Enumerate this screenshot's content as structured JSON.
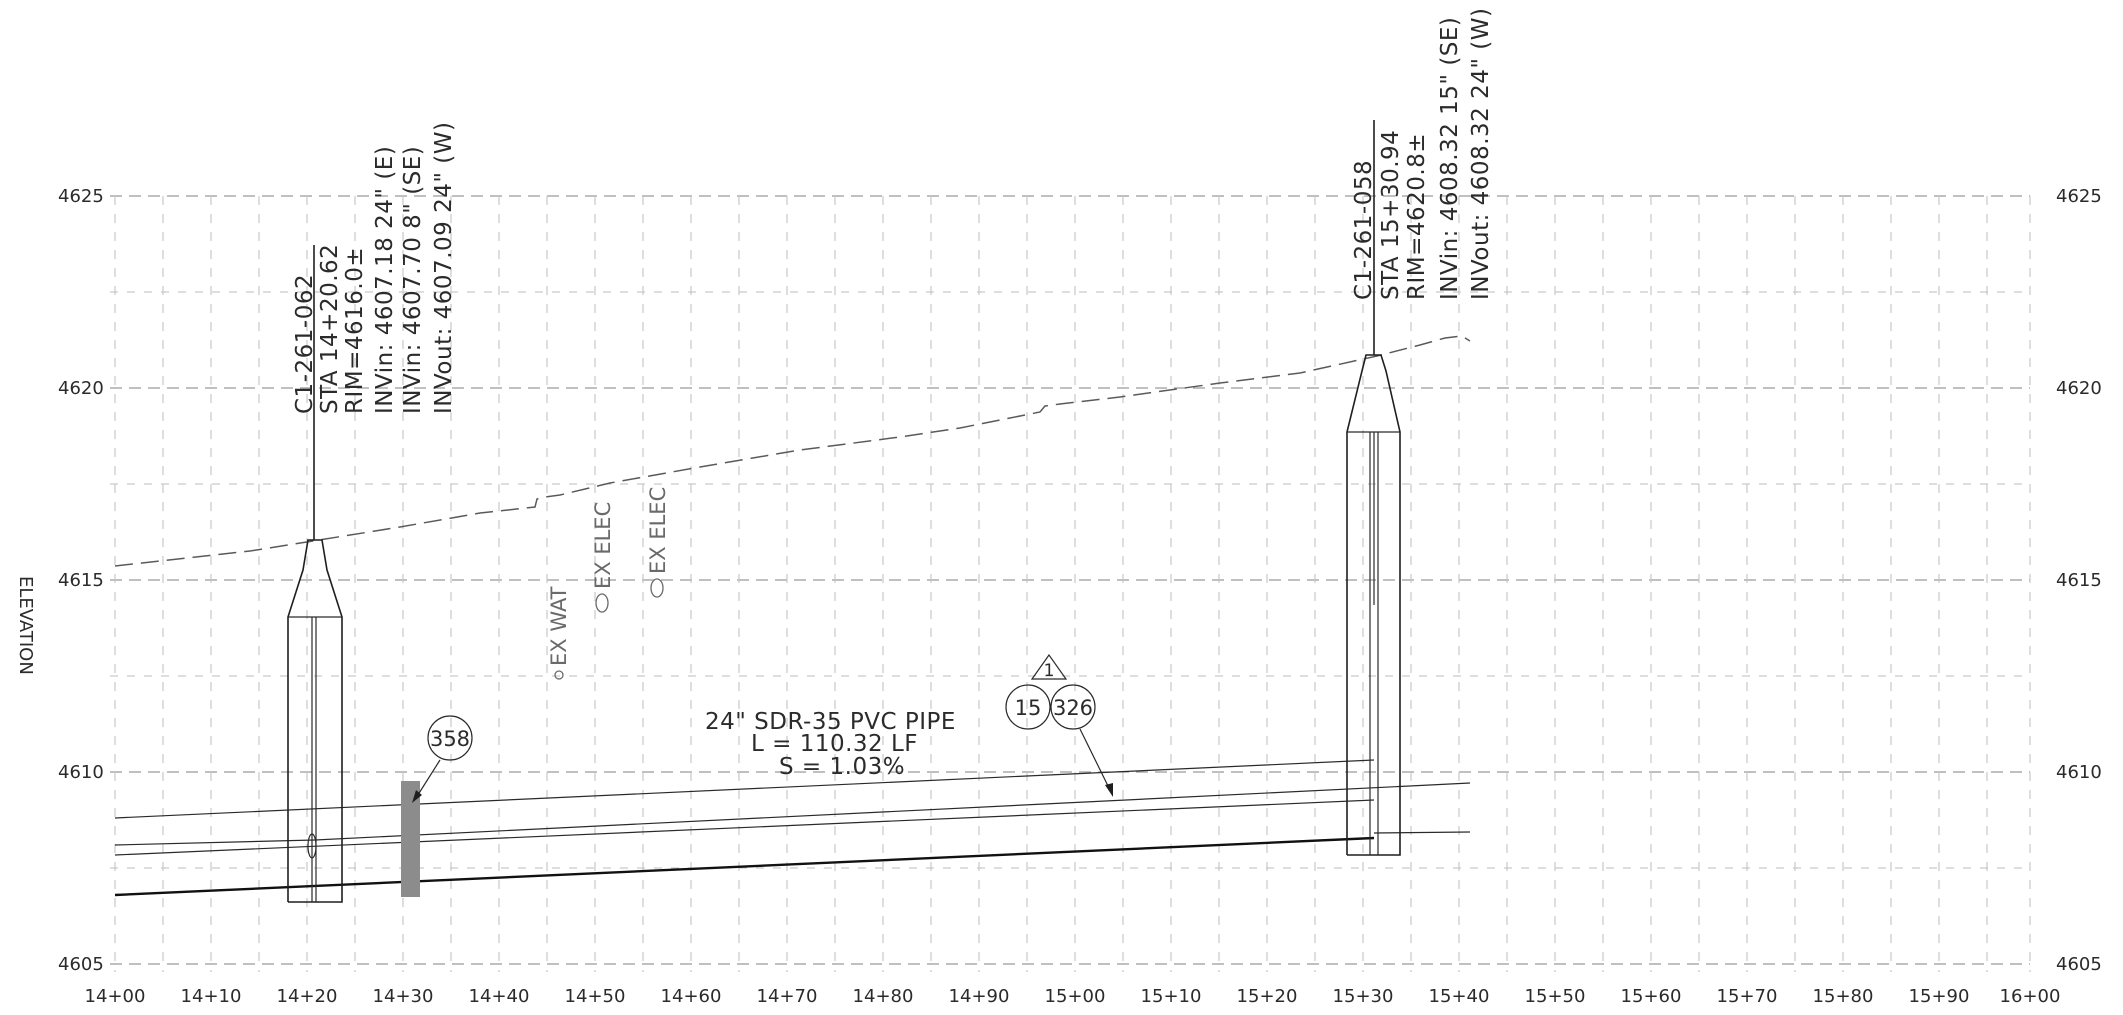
{
  "axis": {
    "left_label": "ELEVATION",
    "elevations": [
      "4625",
      "4620",
      "4615",
      "4610",
      "4605"
    ],
    "stations": [
      "14+00",
      "14+10",
      "14+20",
      "14+30",
      "14+40",
      "14+50",
      "14+60",
      "14+70",
      "14+80",
      "14+90",
      "15+00",
      "15+10",
      "15+20",
      "15+30",
      "15+40",
      "15+50",
      "15+60",
      "15+70",
      "15+80",
      "15+90",
      "16+00"
    ]
  },
  "manhole_west": {
    "id": "C1-261-062",
    "sta": "STA 14+20.62",
    "rim": "RIM=4616.0±",
    "inv_in_1": "INVin: 4607.18 24\" (E)",
    "inv_in_2": "INVin: 4607.70 8\" (SE)",
    "inv_out": "INVout: 4607.09 24\" (W)"
  },
  "manhole_east": {
    "id": "C1-261-058",
    "sta": "STA 15+30.94",
    "rim": "RIM=4620.8±",
    "inv_in": "INVin: 4608.32 15\" (SE)",
    "inv_out": "INVout: 4608.32 24\" (W)"
  },
  "utilities": {
    "water": "EX WAT",
    "elec_1": "EX ELEC",
    "elec_2": "EX ELEC"
  },
  "pipe": {
    "line1": "24\" SDR-35 PVC PIPE",
    "line2": "L = 110.32 LF",
    "line3": "S = 1.03%"
  },
  "callouts": {
    "tag_358": "358",
    "tag_15": "15",
    "tag_326": "326",
    "revision": "1"
  },
  "colors": {
    "linework": "#1f1f1f",
    "grid": "#9a9a9a",
    "utility_text": "#6a6a6a",
    "crossing_fill": "#8c8c8c"
  }
}
